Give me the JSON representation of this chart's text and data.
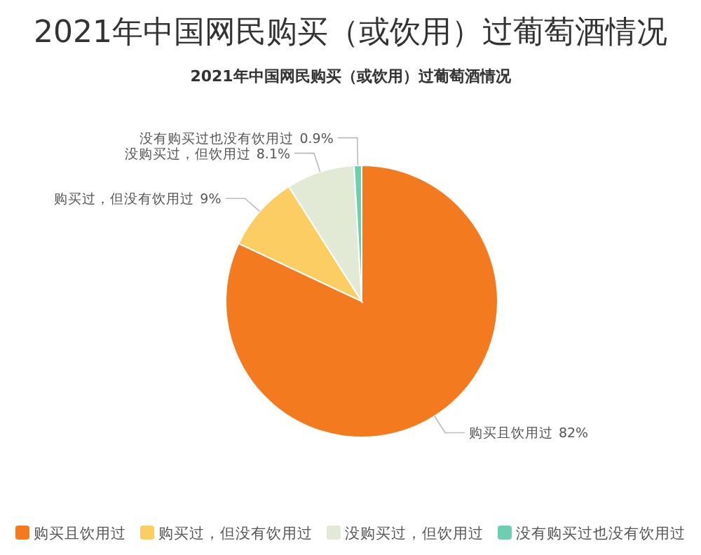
{
  "chart_data": {
    "type": "pie",
    "title": "2021年中国网民购买（或饮用）过葡萄酒情况",
    "subtitle": "2021年中国网民购买（或饮用）过葡萄酒情况",
    "categories": [
      "购买且饮用过",
      "购买过，但没有饮用过",
      "没购买过，但饮用过",
      "没有购买过也没有饮用过"
    ],
    "values": [
      82,
      9,
      8.1,
      0.9
    ],
    "colors": [
      "#f47a1f",
      "#fccd63",
      "#e2e9d5",
      "#6dcfb2"
    ],
    "value_labels": [
      "82%",
      "9%",
      "8.1%",
      "0.9%"
    ],
    "legend": "bottom"
  }
}
